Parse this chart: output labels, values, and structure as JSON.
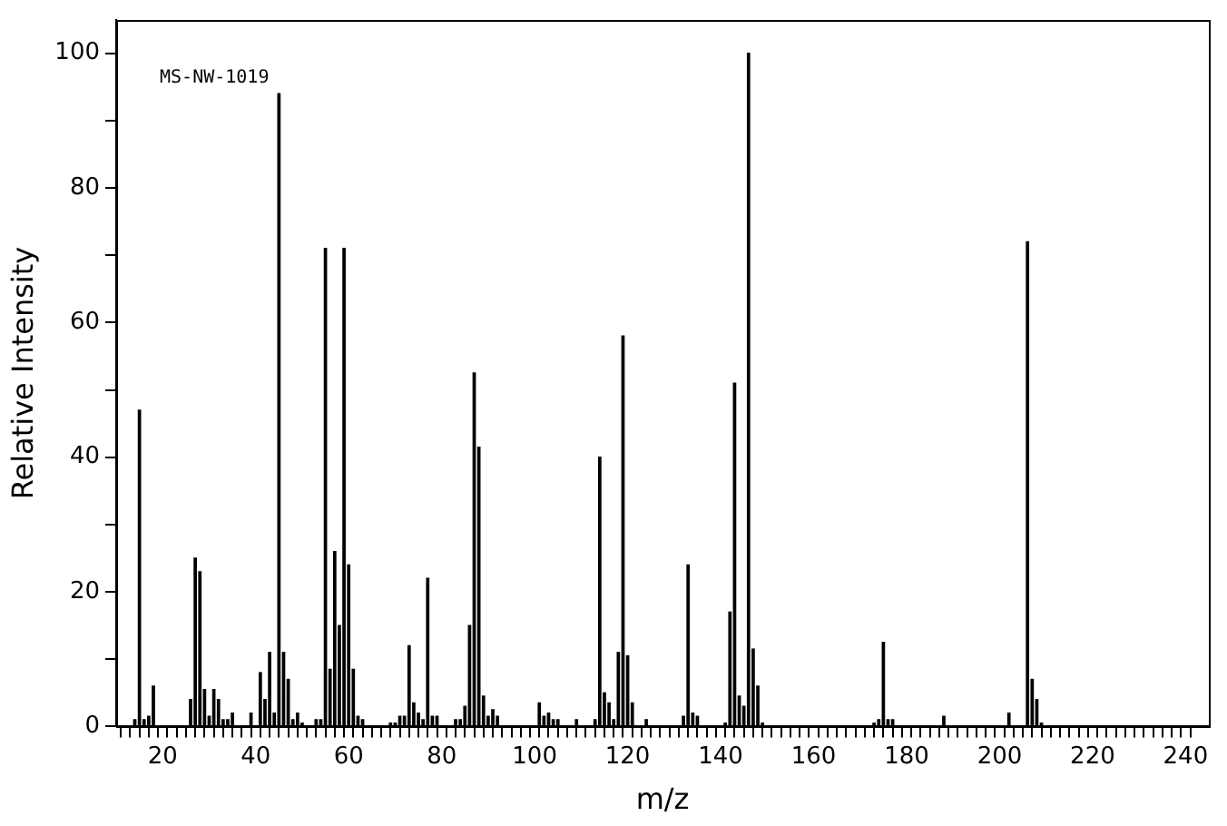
{
  "chart_data": {
    "type": "bar",
    "xlabel": "m/z",
    "ylabel": "Relative Intensity",
    "annotations": [
      "MS-NW-1019"
    ],
    "x": [
      14,
      15,
      16,
      17,
      18,
      26,
      27,
      28,
      29,
      30,
      31,
      32,
      33,
      34,
      35,
      39,
      41,
      42,
      43,
      44,
      45,
      46,
      47,
      48,
      49,
      50,
      53,
      54,
      55,
      56,
      57,
      58,
      59,
      60,
      61,
      62,
      63,
      69,
      70,
      71,
      72,
      73,
      74,
      75,
      76,
      77,
      78,
      79,
      83,
      84,
      85,
      86,
      87,
      88,
      89,
      90,
      91,
      92,
      101,
      102,
      103,
      104,
      105,
      109,
      113,
      114,
      115,
      116,
      117,
      118,
      119,
      120,
      121,
      124,
      132,
      133,
      134,
      135,
      141,
      142,
      143,
      144,
      145,
      146,
      147,
      148,
      149,
      173,
      174,
      175,
      176,
      177,
      188,
      202,
      206,
      207,
      208,
      209
    ],
    "values": [
      1,
      47,
      1,
      1.5,
      6,
      4,
      25,
      23,
      5.5,
      1.5,
      5.5,
      4,
      1,
      1,
      2,
      2,
      8,
      4,
      11,
      2,
      94,
      11,
      7,
      1,
      2,
      0.5,
      1,
      1,
      71,
      8.5,
      26,
      15,
      71,
      24,
      8.5,
      1.5,
      1,
      0.5,
      0.5,
      1.5,
      1.5,
      12,
      3.5,
      2,
      1,
      22,
      1.5,
      1.5,
      1,
      1,
      3,
      15,
      52.5,
      41.5,
      4.5,
      1.5,
      2.5,
      1.5,
      3.5,
      1.5,
      2,
      1,
      1,
      1,
      1,
      40,
      5,
      3.5,
      1,
      11,
      58,
      10.5,
      3.5,
      1,
      1.5,
      24,
      2,
      1.5,
      0.5,
      17,
      51,
      4.5,
      3,
      100,
      11.5,
      6,
      0.5,
      0.5,
      1,
      12.5,
      1,
      1,
      1.5,
      2,
      72,
      7,
      4,
      0.5
    ],
    "color": "#000000",
    "xlim": [
      10,
      245
    ],
    "xticks": [
      {
        "value": 12,
        "label": null
      },
      {
        "value": 14,
        "label": null
      },
      {
        "value": 16,
        "label": null
      },
      {
        "value": 18,
        "label": null
      },
      20,
      {
        "value": 22,
        "label": null
      },
      {
        "value": 24,
        "label": null
      },
      {
        "value": 26,
        "label": null
      },
      {
        "value": 28,
        "label": null
      },
      {
        "value": 30,
        "label": null
      },
      {
        "value": 32,
        "label": null
      },
      {
        "value": 34,
        "label": null
      },
      {
        "value": 36,
        "label": null
      },
      {
        "value": 38,
        "label": null
      },
      40,
      {
        "value": 42,
        "label": null
      },
      {
        "value": 44,
        "label": null
      },
      {
        "value": 46,
        "label": null
      },
      {
        "value": 48,
        "label": null
      },
      {
        "value": 50,
        "label": null
      },
      {
        "value": 52,
        "label": null
      },
      {
        "value": 54,
        "label": null
      },
      {
        "value": 56,
        "label": null
      },
      {
        "value": 58,
        "label": null
      },
      60,
      {
        "value": 62,
        "label": null
      },
      {
        "value": 64,
        "label": null
      },
      {
        "value": 66,
        "label": null
      },
      {
        "value": 68,
        "label": null
      },
      {
        "value": 70,
        "label": null
      },
      {
        "value": 72,
        "label": null
      },
      {
        "value": 74,
        "label": null
      },
      {
        "value": 76,
        "label": null
      },
      {
        "value": 78,
        "label": null
      },
      80,
      {
        "value": 82,
        "label": null
      },
      {
        "value": 84,
        "label": null
      },
      {
        "value": 86,
        "label": null
      },
      {
        "value": 88,
        "label": null
      },
      {
        "value": 90,
        "label": null
      },
      {
        "value": 92,
        "label": null
      },
      {
        "value": 94,
        "label": null
      },
      {
        "value": 96,
        "label": null
      },
      {
        "value": 98,
        "label": null
      },
      100,
      {
        "value": 102,
        "label": null
      },
      {
        "value": 104,
        "label": null
      },
      {
        "value": 106,
        "label": null
      },
      {
        "value": 108,
        "label": null
      },
      {
        "value": 110,
        "label": null
      },
      {
        "value": 112,
        "label": null
      },
      {
        "value": 114,
        "label": null
      },
      {
        "value": 116,
        "label": null
      },
      {
        "value": 118,
        "label": null
      },
      120,
      {
        "value": 122,
        "label": null
      },
      {
        "value": 124,
        "label": null
      },
      {
        "value": 126,
        "label": null
      },
      {
        "value": 128,
        "label": null
      },
      {
        "value": 130,
        "label": null
      },
      {
        "value": 132,
        "label": null
      },
      {
        "value": 134,
        "label": null
      },
      {
        "value": 136,
        "label": null
      },
      {
        "value": 138,
        "label": null
      },
      140,
      {
        "value": 142,
        "label": null
      },
      {
        "value": 144,
        "label": null
      },
      {
        "value": 146,
        "label": null
      },
      {
        "value": 148,
        "label": null
      },
      {
        "value": 150,
        "label": null
      },
      {
        "value": 152,
        "label": null
      },
      {
        "value": 154,
        "label": null
      },
      {
        "value": 156,
        "label": null
      },
      {
        "value": 158,
        "label": null
      },
      160,
      {
        "value": 162,
        "label": null
      },
      {
        "value": 164,
        "label": null
      },
      {
        "value": 166,
        "label": null
      },
      {
        "value": 168,
        "label": null
      },
      {
        "value": 170,
        "label": null
      },
      {
        "value": 172,
        "label": null
      },
      {
        "value": 174,
        "label": null
      },
      {
        "value": 176,
        "label": null
      },
      {
        "value": 178,
        "label": null
      },
      180,
      {
        "value": 182,
        "label": null
      },
      {
        "value": 184,
        "label": null
      },
      {
        "value": 186,
        "label": null
      },
      {
        "value": 188,
        "label": null
      },
      {
        "value": 190,
        "label": null
      },
      {
        "value": 192,
        "label": null
      },
      {
        "value": 194,
        "label": null
      },
      {
        "value": 196,
        "label": null
      },
      {
        "value": 198,
        "label": null
      },
      200,
      {
        "value": 202,
        "label": null
      },
      {
        "value": 204,
        "label": null
      },
      {
        "value": 206,
        "label": null
      },
      {
        "value": 208,
        "label": null
      },
      {
        "value": 210,
        "label": null
      },
      {
        "value": 212,
        "label": null
      },
      {
        "value": 214,
        "label": null
      },
      {
        "value": 216,
        "label": null
      },
      {
        "value": 218,
        "label": null
      },
      220,
      {
        "value": 222,
        "label": null
      },
      {
        "value": 224,
        "label": null
      },
      {
        "value": 226,
        "label": null
      },
      {
        "value": 228,
        "label": null
      },
      {
        "value": 230,
        "label": null
      },
      {
        "value": 232,
        "label": null
      },
      {
        "value": 234,
        "label": null
      },
      {
        "value": 236,
        "label": null
      },
      {
        "value": 238,
        "label": null
      },
      240
    ],
    "ylim": [
      0,
      105
    ],
    "yticks": [
      0,
      {
        "value": 10,
        "label": null
      },
      20,
      {
        "value": 30,
        "label": null
      },
      40,
      {
        "value": 50,
        "label": null
      },
      60,
      {
        "value": 70,
        "label": null
      },
      80,
      {
        "value": 90,
        "label": null
      },
      100
    ],
    "grid": false,
    "legend": false
  }
}
